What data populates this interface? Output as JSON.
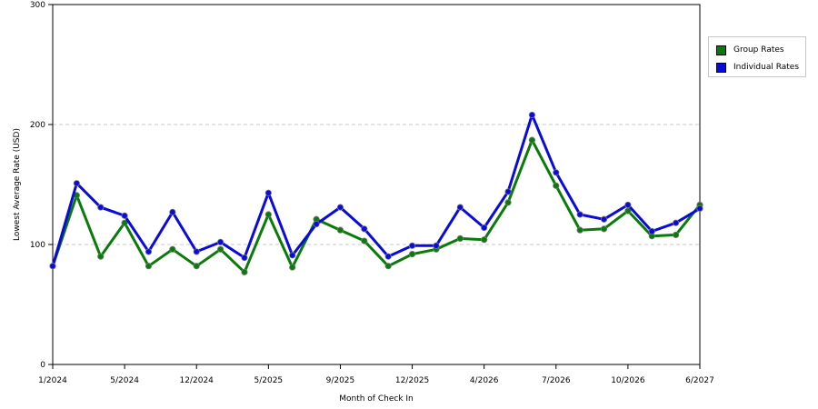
{
  "chart_data": {
    "type": "line",
    "xlabel": "Month of Check In",
    "ylabel": "Lowest Average Rate (USD)",
    "ylim": [
      0,
      300
    ],
    "yticks": [
      0,
      100,
      200,
      300
    ],
    "xtick_labels": [
      "1/2024",
      "5/2024",
      "12/2024",
      "5/2025",
      "9/2025",
      "12/2025",
      "4/2026",
      "7/2026",
      "10/2026",
      "6/2027"
    ],
    "grid": "horizontal dashed",
    "legend_position": "right",
    "x_count": 28,
    "series": [
      {
        "name": "Group Rates",
        "color": "#0a7a0a",
        "values": [
          82,
          141,
          90,
          118,
          82,
          96,
          82,
          96,
          77,
          125,
          81,
          121,
          112,
          103,
          82,
          92,
          96,
          105,
          104,
          135,
          187,
          149,
          112,
          113,
          128,
          107,
          108,
          133
        ]
      },
      {
        "name": "Individual Rates",
        "color": "#0a0adc",
        "values": [
          82,
          151,
          131,
          124,
          94,
          127,
          94,
          102,
          89,
          143,
          91,
          117,
          131,
          113,
          90,
          99,
          99,
          131,
          114,
          144,
          208,
          160,
          125,
          121,
          133,
          111,
          118,
          130
        ]
      }
    ]
  }
}
